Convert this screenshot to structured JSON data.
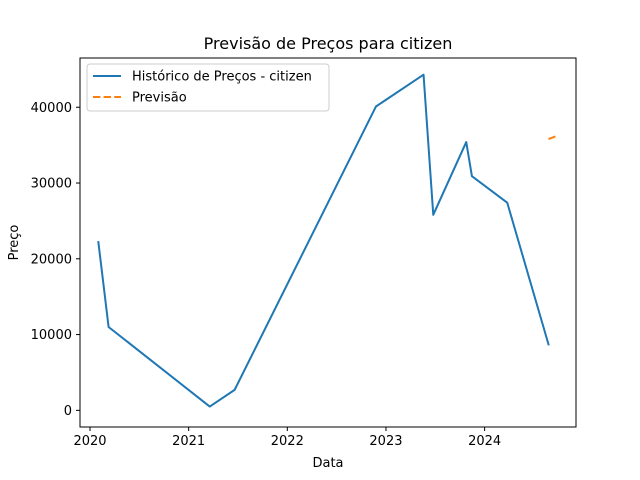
{
  "chart_data": {
    "type": "line",
    "title": "Previsão de Preços para citizen",
    "xlabel": "Data",
    "ylabel": "Preço",
    "x_ticks": [
      "2020",
      "2021",
      "2022",
      "2023",
      "2024"
    ],
    "y_ticks": [
      "0",
      "10000",
      "20000",
      "30000",
      "40000"
    ],
    "xlim": [
      "2019-11-25",
      "2024-12-05"
    ],
    "ylim": [
      -2200,
      46500
    ],
    "grid": false,
    "legend_position": "upper left",
    "series": [
      {
        "name": "Histórico de Preços - citizen",
        "color": "#1f77b4",
        "style": "solid",
        "points": [
          {
            "x": "2020-02-01",
            "y": 22200
          },
          {
            "x": "2020-03-10",
            "y": 11000
          },
          {
            "x": "2021-03-20",
            "y": 500
          },
          {
            "x": "2021-06-20",
            "y": 2700
          },
          {
            "x": "2022-11-25",
            "y": 40100
          },
          {
            "x": "2023-05-20",
            "y": 44300
          },
          {
            "x": "2023-06-25",
            "y": 25800
          },
          {
            "x": "2023-10-25",
            "y": 35400
          },
          {
            "x": "2023-11-15",
            "y": 30900
          },
          {
            "x": "2024-03-25",
            "y": 27400
          },
          {
            "x": "2024-08-25",
            "y": 8700
          }
        ]
      },
      {
        "name": "Previsão",
        "color": "#ff7f0e",
        "style": "dashed",
        "points": [
          {
            "x": "2024-08-25",
            "y": 35800
          },
          {
            "x": "2024-10-01",
            "y": 36300
          }
        ]
      }
    ]
  }
}
